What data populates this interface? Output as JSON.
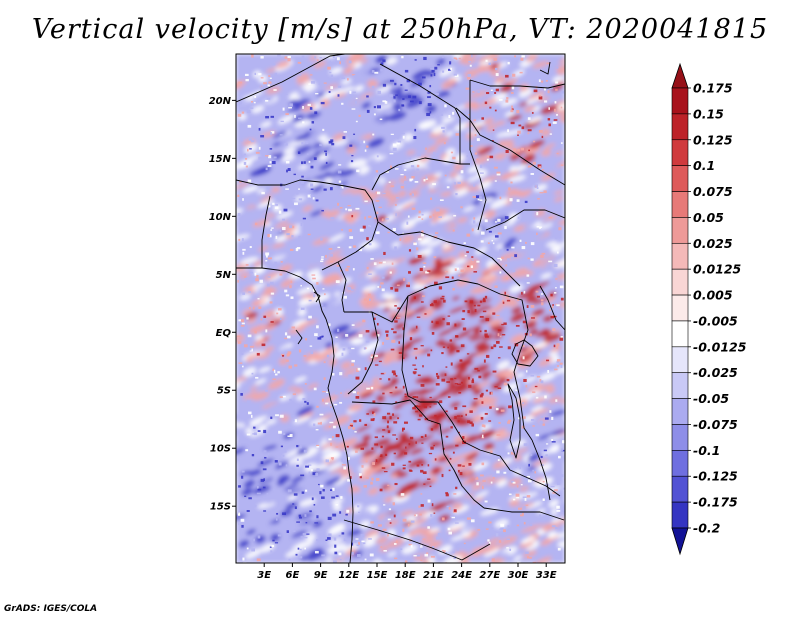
{
  "title": "Vertical velocity [m/s] at 250hPa, VT: 2020041815",
  "footer": "GrADS: IGES/COLA",
  "map": {
    "lon_range": [
      0,
      35
    ],
    "lat_range": [
      -19.9,
      24
    ],
    "lat_ticks": [
      {
        "value": 20,
        "label": "20N"
      },
      {
        "value": 15,
        "label": "15N"
      },
      {
        "value": 10,
        "label": "10N"
      },
      {
        "value": 5,
        "label": "5N"
      },
      {
        "value": 0,
        "label": "EQ"
      },
      {
        "value": -5,
        "label": "5S"
      },
      {
        "value": -10,
        "label": "10S"
      },
      {
        "value": -15,
        "label": "15S"
      }
    ],
    "lon_ticks": [
      {
        "value": 3,
        "label": "3E"
      },
      {
        "value": 6,
        "label": "6E"
      },
      {
        "value": 9,
        "label": "9E"
      },
      {
        "value": 12,
        "label": "12E"
      },
      {
        "value": 15,
        "label": "15E"
      },
      {
        "value": 18,
        "label": "18E"
      },
      {
        "value": 21,
        "label": "21E"
      },
      {
        "value": 24,
        "label": "24E"
      },
      {
        "value": 27,
        "label": "27E"
      },
      {
        "value": 30,
        "label": "30E"
      },
      {
        "value": 33,
        "label": "33E"
      }
    ]
  },
  "colorbar": {
    "levels": [
      {
        "label": "0.175",
        "color": "#a8121c"
      },
      {
        "label": "0.15",
        "color": "#bd2229"
      },
      {
        "label": "0.125",
        "color": "#d03a3d"
      },
      {
        "label": "0.1",
        "color": "#de5a5a"
      },
      {
        "label": "0.075",
        "color": "#e77a78"
      },
      {
        "label": "0.05",
        "color": "#ee9a98"
      },
      {
        "label": "0.025",
        "color": "#f4b9b8"
      },
      {
        "label": "0.0125",
        "color": "#f9d6d5"
      },
      {
        "label": "0.005",
        "color": "#fcebea"
      },
      {
        "label": "-0.005",
        "color": "#ffffff"
      },
      {
        "label": "-0.0125",
        "color": "#e6e6fb"
      },
      {
        "label": "-0.025",
        "color": "#c9c9f6"
      },
      {
        "label": "-0.05",
        "color": "#ababf0"
      },
      {
        "label": "-0.075",
        "color": "#8e8ee8"
      },
      {
        "label": "-0.1",
        "color": "#6f6fe0"
      },
      {
        "label": "-0.125",
        "color": "#5252d4"
      },
      {
        "label": "-0.175",
        "color": "#3535c2"
      },
      {
        "label": "-0.2",
        "color": "#1e1eaa"
      }
    ],
    "top_color": "#961018",
    "bottom_color": "#121296",
    "colors": {
      "strong_positive": "#c0272d",
      "weak_positive": "#f2a6a6",
      "neutral": "#ffffff",
      "weak_negative": "#b4b4f2",
      "strong_negative": "#3b3bc8"
    }
  }
}
